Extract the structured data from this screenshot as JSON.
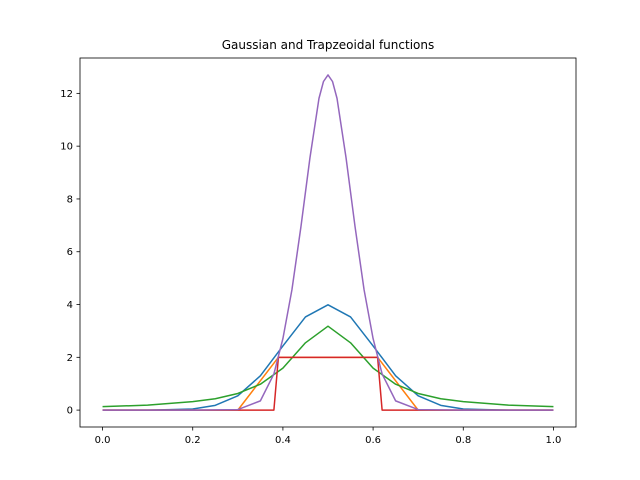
{
  "chart_data": {
    "type": "line",
    "title": "Gaussian and Trapzeoidal functions",
    "xlabel": "",
    "ylabel": "",
    "xlim": [
      -0.05,
      1.05
    ],
    "ylim": [
      -0.64,
      13.34
    ],
    "grid": false,
    "legend": "none",
    "x_ticks": [
      0.0,
      0.2,
      0.4,
      0.6,
      0.8,
      1.0
    ],
    "x_tick_labels": [
      "0.0",
      "0.2",
      "0.4",
      "0.6",
      "0.8",
      "1.0"
    ],
    "y_ticks": [
      0,
      2,
      4,
      6,
      8,
      10,
      12
    ],
    "y_tick_labels": [
      "0",
      "2",
      "4",
      "6",
      "8",
      "10",
      "12"
    ],
    "series": [
      {
        "color": "#1f77b4",
        "x": [
          0.0,
          0.1,
          0.15,
          0.2,
          0.25,
          0.3,
          0.35,
          0.4,
          0.45,
          0.5,
          0.55,
          0.6,
          0.65,
          0.7,
          0.75,
          0.8,
          0.85,
          0.9,
          1.0
        ],
        "y": [
          0.0,
          0.0,
          0.02,
          0.04,
          0.18,
          0.54,
          1.3,
          2.43,
          3.53,
          3.99,
          3.53,
          2.43,
          1.3,
          0.54,
          0.18,
          0.04,
          0.02,
          0.0,
          0.0
        ]
      },
      {
        "color": "#ff7f0e",
        "x": [
          0.0,
          0.3,
          0.39,
          0.61,
          0.7,
          1.0
        ],
        "y": [
          0.0,
          0.0,
          2.0,
          2.0,
          0.0,
          0.0
        ]
      },
      {
        "color": "#2ca02c",
        "x": [
          0.0,
          0.1,
          0.2,
          0.25,
          0.3,
          0.35,
          0.4,
          0.45,
          0.5,
          0.55,
          0.6,
          0.65,
          0.7,
          0.75,
          0.8,
          0.9,
          1.0
        ],
        "y": [
          0.13,
          0.19,
          0.32,
          0.43,
          0.63,
          0.98,
          1.59,
          2.55,
          3.18,
          2.55,
          1.59,
          0.98,
          0.63,
          0.43,
          0.32,
          0.19,
          0.13
        ]
      },
      {
        "color": "#d62728",
        "x": [
          0.0,
          0.38,
          0.39,
          0.61,
          0.62,
          1.0
        ],
        "y": [
          0.0,
          0.0,
          2.0,
          2.0,
          0.0,
          0.0
        ]
      },
      {
        "color": "#9467bd",
        "x": [
          0.0,
          0.2,
          0.3,
          0.35,
          0.38,
          0.4,
          0.42,
          0.44,
          0.46,
          0.48,
          0.49,
          0.5,
          0.51,
          0.52,
          0.54,
          0.56,
          0.58,
          0.6,
          0.62,
          0.65,
          0.7,
          0.8,
          1.0
        ],
        "y": [
          0.0,
          0.0,
          0.02,
          0.35,
          1.37,
          2.71,
          4.56,
          6.95,
          9.56,
          11.81,
          12.45,
          12.7,
          12.45,
          11.81,
          9.56,
          6.95,
          4.56,
          2.71,
          1.37,
          0.35,
          0.02,
          0.0,
          0.0
        ]
      }
    ]
  }
}
